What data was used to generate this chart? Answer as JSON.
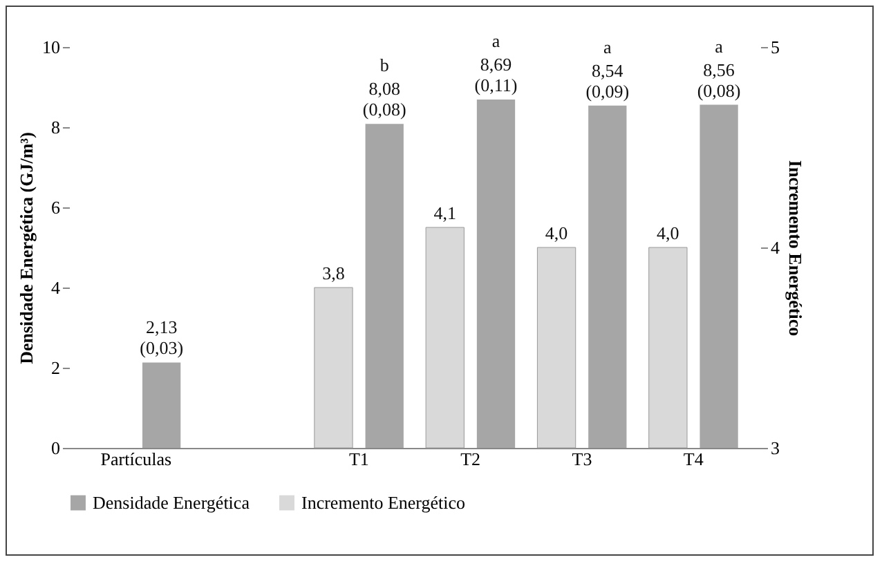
{
  "chart_data": {
    "type": "bar",
    "categories": [
      "Partículas",
      null,
      "T1",
      "T2",
      "T3",
      "T4"
    ],
    "ylabel": "Densidade Energética (GJ/m³)",
    "y2label": "Incremento Energético",
    "ylim": [
      0,
      10
    ],
    "yticks": [
      0,
      2,
      4,
      6,
      8,
      10
    ],
    "y2lim": [
      3,
      5
    ],
    "y2ticks": [
      3,
      4,
      5
    ],
    "series": [
      {
        "name": "Densidade Energética",
        "color": "#a6a6a6",
        "values": [
          2.13,
          null,
          8.08,
          8.69,
          8.54,
          8.56
        ],
        "value_labels": [
          "2,13\n(0,03)",
          null,
          "8,08\n(0,08)",
          "8,69\n(0,11)",
          "8,54\n(0,09)",
          "8,56\n(0,08)"
        ]
      },
      {
        "name": "Incremento Energético",
        "color": "#d9d9d9",
        "axis": "y2",
        "values": [
          null,
          null,
          3.8,
          4.1,
          4.0,
          4.0
        ],
        "value_labels": [
          null,
          null,
          "3,8",
          "4,1",
          "4,0",
          "4,0"
        ]
      }
    ],
    "annotations": [
      {
        "text": "b",
        "x": "T1",
        "y": 8.08
      },
      {
        "text": "a",
        "x": "T2",
        "y": 8.69
      },
      {
        "text": "a",
        "x": "T3",
        "y": 8.54
      },
      {
        "text": "a",
        "x": "T4",
        "y": 8.56
      }
    ],
    "legend": "bottom",
    "grid": false
  }
}
